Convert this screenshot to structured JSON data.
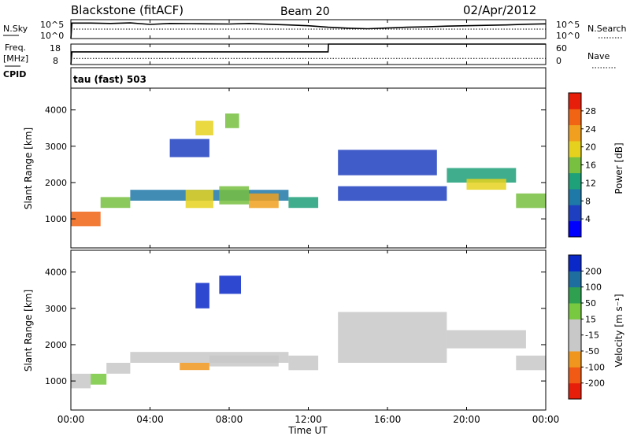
{
  "header": {
    "station": "Blackstone (fitACF)",
    "beam": "Beam 20",
    "date": "02/Apr/2012"
  },
  "left_labels": {
    "nsky": "N.Sky",
    "freq": "Freq.",
    "freq_unit": "[MHz]",
    "cpid": "CPID"
  },
  "right_labels": {
    "nsearch": "N.Search",
    "nave": "Nave"
  },
  "tau_label": "tau (fast) 503",
  "chart_data": [
    {
      "type": "line",
      "name": "noise",
      "yticks_left": [
        "10^5",
        "10^0"
      ],
      "yticks_right": [
        "10^5",
        "10^0"
      ],
      "series": [
        {
          "name": "N.Sky",
          "style": "solid",
          "x": [
            0,
            0.05,
            1,
            2,
            3,
            4,
            5,
            6,
            7,
            8,
            9,
            10,
            11,
            12,
            13,
            14,
            15,
            16,
            17,
            18,
            19,
            20,
            21,
            22,
            23,
            24
          ],
          "y": [
            0,
            0.82,
            0.82,
            0.8,
            0.83,
            0.75,
            0.8,
            0.79,
            0.78,
            0.77,
            0.8,
            0.76,
            0.72,
            0.68,
            0.6,
            0.55,
            0.52,
            0.56,
            0.6,
            0.62,
            0.66,
            0.68,
            0.7,
            0.72,
            0.76,
            0.78
          ]
        },
        {
          "name": "N.Search",
          "style": "dotted",
          "x": [
            0,
            24
          ],
          "y": [
            0.5,
            0.5
          ]
        }
      ]
    },
    {
      "type": "line",
      "name": "frequency",
      "yticks_left": [
        "18",
        "8"
      ],
      "yticks_right": [
        "60",
        "0"
      ],
      "series": [
        {
          "name": "Freq.",
          "style": "solid",
          "x": [
            0,
            0.05,
            13,
            13.02,
            24
          ],
          "y": [
            0,
            0.62,
            0.62,
            1.0,
            1.0
          ]
        },
        {
          "name": "Nave",
          "style": "dotted",
          "x": [
            0,
            24
          ],
          "y": [
            0.3,
            0.3
          ]
        }
      ]
    },
    {
      "type": "heatmap",
      "name": "power",
      "ylabel": "Slant Range [km]",
      "colorbar_label": "Power [dB]",
      "colorbar_ticks": [
        "28",
        "24",
        "20",
        "16",
        "12",
        "8",
        "4"
      ],
      "colors": [
        "#0000ff",
        "#1e40c0",
        "#1e78a8",
        "#1ea078",
        "#78c040",
        "#e6d21e",
        "#f0a01e",
        "#f06414",
        "#e61e0a"
      ],
      "ylim": [
        200,
        4600
      ],
      "yticks": [
        "1000",
        "2000",
        "3000",
        "4000"
      ],
      "regions": [
        {
          "x": [
            0,
            1.5
          ],
          "y": [
            800,
            1200
          ],
          "level": 7
        },
        {
          "x": [
            1.5,
            3
          ],
          "y": [
            1300,
            1600
          ],
          "level": 4
        },
        {
          "x": [
            3,
            11
          ],
          "y": [
            1500,
            1800
          ],
          "level": 2
        },
        {
          "x": [
            5.8,
            7.2
          ],
          "y": [
            1300,
            1800
          ],
          "level": 5
        },
        {
          "x": [
            7.5,
            9
          ],
          "y": [
            1400,
            1900
          ],
          "level": 4
        },
        {
          "x": [
            9,
            10.5
          ],
          "y": [
            1300,
            1700
          ],
          "level": 6
        },
        {
          "x": [
            6.3,
            7.2
          ],
          "y": [
            3300,
            3700
          ],
          "level": 5
        },
        {
          "x": [
            7.8,
            8.5
          ],
          "y": [
            3500,
            3900
          ],
          "level": 4
        },
        {
          "x": [
            5,
            7
          ],
          "y": [
            2700,
            3200
          ],
          "level": 1
        },
        {
          "x": [
            11,
            12.5
          ],
          "y": [
            1300,
            1600
          ],
          "level": 3
        },
        {
          "x": [
            13.5,
            19
          ],
          "y": [
            1500,
            1900
          ],
          "level": 1
        },
        {
          "x": [
            13.5,
            18.5
          ],
          "y": [
            2200,
            2900
          ],
          "level": 1
        },
        {
          "x": [
            19,
            22.5
          ],
          "y": [
            2000,
            2400
          ],
          "level": 3
        },
        {
          "x": [
            20,
            22
          ],
          "y": [
            1800,
            2100
          ],
          "level": 5
        },
        {
          "x": [
            22.5,
            24
          ],
          "y": [
            1300,
            1700
          ],
          "level": 4
        }
      ]
    },
    {
      "type": "heatmap",
      "name": "velocity",
      "ylabel": "Slant Range [km]",
      "colorbar_label": "Velocity [m s⁻¹]",
      "colorbar_ticks": [
        "200",
        "100",
        "50",
        "15",
        "-15",
        "-50",
        "-100",
        "-200"
      ],
      "colors": [
        "#e61e0a",
        "#f05a14",
        "#f0961e",
        "#c8c8c8",
        "#c8c8c8",
        "#78c840",
        "#2ea050",
        "#1e6ea0",
        "#0a28c8"
      ],
      "ylim": [
        200,
        4600
      ],
      "yticks": [
        "1000",
        "2000",
        "3000",
        "4000"
      ],
      "regions": [
        {
          "x": [
            0,
            1
          ],
          "y": [
            800,
            1200
          ],
          "level": 4
        },
        {
          "x": [
            1,
            1.8
          ],
          "y": [
            900,
            1200
          ],
          "level": 5
        },
        {
          "x": [
            1.8,
            3
          ],
          "y": [
            1200,
            1500
          ],
          "level": 4
        },
        {
          "x": [
            3,
            11
          ],
          "y": [
            1500,
            1800
          ],
          "level": 4
        },
        {
          "x": [
            5.5,
            7
          ],
          "y": [
            1300,
            1500
          ],
          "level": 2
        },
        {
          "x": [
            7,
            10.5
          ],
          "y": [
            1400,
            1700
          ],
          "level": 4
        },
        {
          "x": [
            6.3,
            7
          ],
          "y": [
            3000,
            3700
          ],
          "level": 8
        },
        {
          "x": [
            7.5,
            8.6
          ],
          "y": [
            3400,
            3900
          ],
          "level": 8
        },
        {
          "x": [
            11,
            12.5
          ],
          "y": [
            1300,
            1700
          ],
          "level": 4
        },
        {
          "x": [
            13.5,
            19
          ],
          "y": [
            1500,
            2900
          ],
          "level": 4
        },
        {
          "x": [
            19,
            23
          ],
          "y": [
            1900,
            2400
          ],
          "level": 4
        },
        {
          "x": [
            22.5,
            24
          ],
          "y": [
            1300,
            1700
          ],
          "level": 4
        }
      ]
    }
  ],
  "xaxis": {
    "label": "Time UT",
    "ticks": [
      "00:00",
      "04:00",
      "08:00",
      "12:00",
      "16:00",
      "20:00",
      "00:00"
    ],
    "range_hours": [
      0,
      24
    ]
  }
}
